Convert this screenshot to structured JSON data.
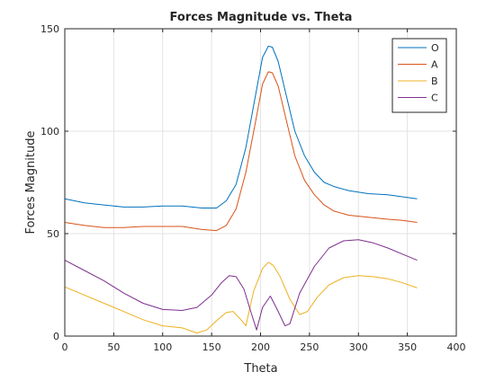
{
  "chart_data": {
    "type": "line",
    "title": "Forces Magnitude vs. Theta",
    "xlabel": "Theta",
    "ylabel": "Forces Magnitude",
    "xlim": [
      0,
      400
    ],
    "ylim": [
      0,
      150
    ],
    "xticks": [
      0,
      50,
      100,
      150,
      200,
      250,
      300,
      350,
      400
    ],
    "yticks": [
      0,
      50,
      100,
      150
    ],
    "grid": true,
    "legend_position": "top-right",
    "series": [
      {
        "name": "O",
        "color": "#0072BD",
        "x": [
          0,
          20,
          40,
          60,
          80,
          100,
          120,
          140,
          155,
          165,
          175,
          185,
          195,
          202,
          208,
          212,
          218,
          225,
          235,
          245,
          255,
          265,
          275,
          290,
          310,
          330,
          345,
          360
        ],
        "y": [
          67,
          65,
          64,
          63,
          63,
          63.5,
          63.5,
          62.5,
          62.5,
          66,
          74,
          92,
          118,
          136,
          141.5,
          141,
          134,
          120,
          100,
          88,
          80,
          75,
          73,
          71,
          69.5,
          69,
          68,
          67
        ]
      },
      {
        "name": "A",
        "color": "#D95319",
        "x": [
          0,
          20,
          40,
          60,
          80,
          100,
          120,
          140,
          155,
          165,
          175,
          185,
          195,
          202,
          208,
          212,
          218,
          225,
          235,
          245,
          255,
          265,
          275,
          290,
          310,
          330,
          345,
          360
        ],
        "y": [
          55.5,
          54,
          53,
          53,
          53.5,
          53.5,
          53.5,
          52,
          51.5,
          54,
          62,
          80,
          105,
          123,
          129,
          128.5,
          122,
          108,
          88,
          76,
          69,
          64,
          61,
          59,
          58,
          57,
          56.5,
          55.5
        ]
      },
      {
        "name": "B",
        "color": "#EDB120",
        "x": [
          0,
          20,
          40,
          60,
          80,
          100,
          120,
          135,
          145,
          155,
          165,
          172,
          180,
          185,
          193,
          202,
          208,
          213,
          220,
          230,
          240,
          248,
          258,
          270,
          285,
          300,
          315,
          330,
          345,
          360
        ],
        "y": [
          24,
          20,
          16,
          12,
          8,
          5,
          4,
          1.5,
          3,
          7.5,
          11.5,
          12,
          8,
          5,
          22,
          33,
          36,
          34.5,
          29,
          18,
          10.5,
          12,
          19,
          25,
          28.5,
          29.5,
          29,
          28,
          26,
          23.5
        ]
      },
      {
        "name": "C",
        "color": "#7E2F8E",
        "x": [
          0,
          20,
          40,
          60,
          80,
          100,
          120,
          135,
          150,
          160,
          168,
          175,
          183,
          190,
          196,
          202,
          210,
          217,
          225,
          230,
          240,
          255,
          270,
          285,
          300,
          315,
          330,
          345,
          360
        ],
        "y": [
          37,
          32,
          27,
          21,
          16,
          13,
          12.5,
          14,
          20,
          26,
          29.5,
          29,
          23,
          12,
          3,
          14,
          19.5,
          13,
          5,
          6,
          21,
          34,
          43,
          46.5,
          47,
          45.5,
          43,
          40,
          37
        ]
      }
    ]
  }
}
